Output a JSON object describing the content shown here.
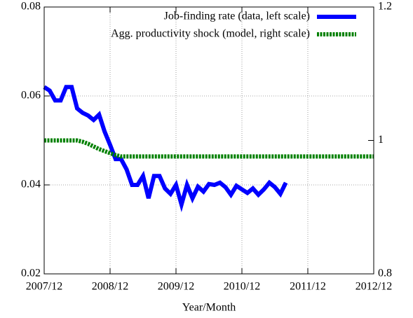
{
  "chart_data": {
    "type": "line",
    "xlabel": "Year/Month",
    "x": [
      "2007/12",
      "2008/01",
      "2008/02",
      "2008/03",
      "2008/04",
      "2008/05",
      "2008/06",
      "2008/07",
      "2008/08",
      "2008/09",
      "2008/10",
      "2008/11",
      "2008/12",
      "2009/01",
      "2009/02",
      "2009/03",
      "2009/04",
      "2009/05",
      "2009/06",
      "2009/07",
      "2009/08",
      "2009/09",
      "2009/10",
      "2009/11",
      "2009/12",
      "2010/01",
      "2010/02",
      "2010/03",
      "2010/04",
      "2010/05",
      "2010/06",
      "2010/07",
      "2010/08",
      "2010/09",
      "2010/10",
      "2010/11",
      "2010/12",
      "2011/01",
      "2011/02",
      "2011/03",
      "2011/04",
      "2011/05",
      "2011/06",
      "2011/07",
      "2011/08",
      "2011/09",
      "2011/10",
      "2011/11",
      "2011/12",
      "2012/01",
      "2012/02",
      "2012/03",
      "2012/04",
      "2012/05",
      "2012/06",
      "2012/07",
      "2012/08",
      "2012/09",
      "2012/10",
      "2012/11",
      "2012/12"
    ],
    "series": [
      {
        "name": "Job-finding rate (data, left scale)",
        "color": "#0000ff",
        "values": [
          0.062,
          0.0612,
          0.059,
          0.059,
          0.062,
          0.062,
          0.0572,
          0.0562,
          0.0556,
          0.0546,
          0.0558,
          0.052,
          0.049,
          0.0458,
          0.0458,
          0.0435,
          0.04,
          0.04,
          0.042,
          0.037,
          0.042,
          0.042,
          0.0392,
          0.038,
          0.04,
          0.0356,
          0.04,
          0.037,
          0.0396,
          0.0385,
          0.0402,
          0.04,
          0.0405,
          0.0395,
          0.0378,
          0.0398,
          0.039,
          0.0382,
          0.0392,
          0.0378,
          0.039,
          0.0405,
          0.0395,
          0.038,
          0.0405,
          null,
          null,
          null,
          null,
          null,
          null,
          null,
          null,
          null,
          null,
          null,
          null,
          null,
          null,
          null,
          null
        ]
      },
      {
        "name": "Agg. productivity shock (model, right scale)",
        "color": "#008000",
        "axis": "y2",
        "values": [
          1,
          1,
          1,
          1,
          1,
          1,
          1,
          0.998,
          0.995,
          0.991,
          0.987,
          0.984,
          0.981,
          0.978,
          0.976,
          0.976,
          0.976,
          0.976,
          0.976,
          0.976,
          0.976,
          0.976,
          0.976,
          0.976,
          0.976,
          0.976,
          0.976,
          0.976,
          0.976,
          0.976,
          0.976,
          0.976,
          0.976,
          0.976,
          0.976,
          0.976,
          0.976,
          0.976,
          0.976,
          0.976,
          0.976,
          0.976,
          0.976,
          0.976,
          0.976,
          0.976,
          0.976,
          0.976,
          0.976,
          0.976,
          0.976,
          0.976,
          0.976,
          0.976,
          0.976,
          0.976,
          0.976,
          0.976,
          0.976,
          0.976,
          0.976
        ]
      }
    ],
    "xlim": [
      "2007/12",
      "2012/12"
    ],
    "xticks": [
      "2007/12",
      "2008/12",
      "2009/12",
      "2010/12",
      "2011/12",
      "2012/12"
    ],
    "ylim": [
      0.02,
      0.08
    ],
    "yticks": [
      0.02,
      0.04,
      0.06,
      0.08
    ],
    "y2lim": [
      0.8,
      1.2
    ],
    "y2ticks": [
      0.8,
      1,
      1.2
    ],
    "grid": true,
    "legend": "top-right"
  }
}
